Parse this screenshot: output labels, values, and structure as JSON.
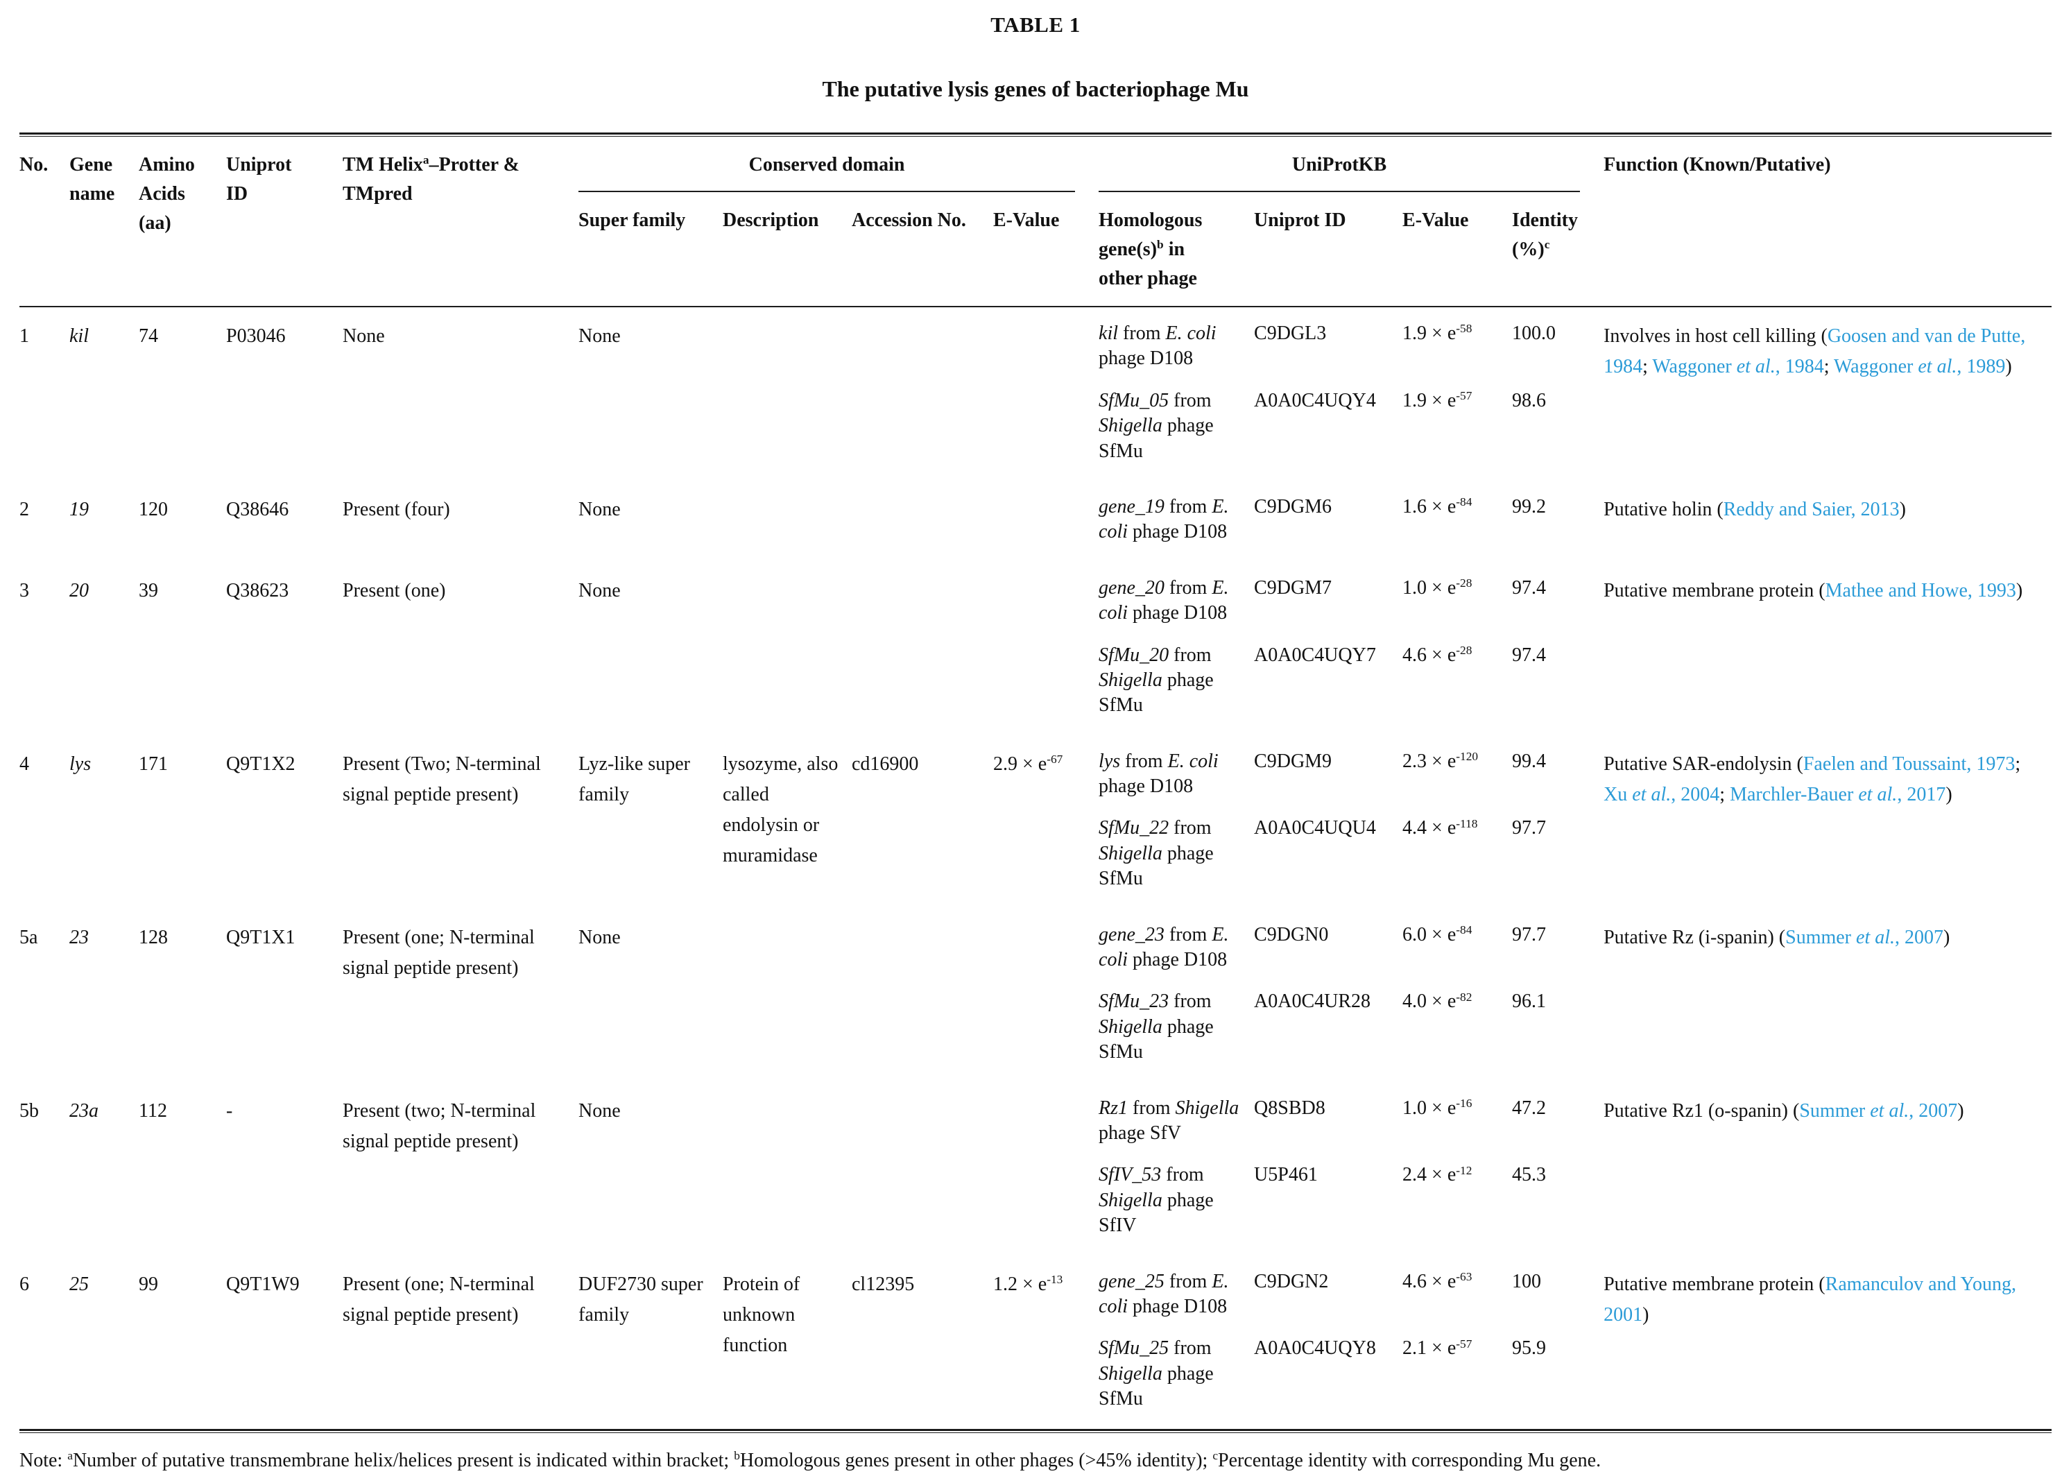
{
  "title": "TABLE 1",
  "subtitle": "The putative lysis genes of bacteriophage Mu",
  "accent_color": "#2b9bd7",
  "header": {
    "no": "No.",
    "gene_name": "Gene name",
    "amino_acids": "Amino Acids (aa)",
    "uniprot_id": "Uniprot ID",
    "tm_helix": [
      {
        "t": "TM Helix"
      },
      {
        "t": "a",
        "s": "sup"
      },
      {
        "t": "–Protter & TMpred"
      }
    ],
    "conserved_domain_group": "Conserved domain",
    "uniprotkb_group": "UniProtKB",
    "function": "Function (Known/Putative)",
    "sub": {
      "super_family": "Super family",
      "description": "Description",
      "accession_no": "Accession No.",
      "e_value": "E-Value",
      "homologous": [
        {
          "t": "Homologous gene(s)"
        },
        {
          "t": "b",
          "s": "sup"
        },
        {
          "t": " in other phage"
        }
      ],
      "uniprot_id": "Uniprot ID",
      "e_value2": "E-Value",
      "identity": [
        {
          "t": "Identity (%)"
        },
        {
          "t": "c",
          "s": "sup"
        }
      ]
    }
  },
  "rows": [
    {
      "no": "1",
      "gene": [
        {
          "t": "kil",
          "s": "i"
        }
      ],
      "aa": "74",
      "uniprot": "P03046",
      "tm": "None",
      "sf": "None",
      "desc": "",
      "acc": "",
      "ev": "",
      "homologs": [
        {
          "gene": [
            {
              "t": "kil",
              "s": "i"
            },
            {
              "t": " from "
            },
            {
              "t": "E. coli",
              "s": "i"
            },
            {
              "t": " phage D108"
            }
          ],
          "uniprot": "C9DGL3",
          "evalue": [
            {
              "t": "1.9 × e"
            },
            {
              "t": "-58",
              "s": "sup"
            }
          ],
          "identity": "100.0"
        },
        {
          "gene": [
            {
              "t": "SfMu_05",
              "s": "i"
            },
            {
              "t": " from "
            },
            {
              "t": "Shigella",
              "s": "i"
            },
            {
              "t": " phage SfMu"
            }
          ],
          "uniprot": "A0A0C4UQY4",
          "evalue": [
            {
              "t": "1.9 × e"
            },
            {
              "t": "-57",
              "s": "sup"
            }
          ],
          "identity": "98.6"
        }
      ],
      "function": [
        {
          "t": "Involves in host cell killing ("
        },
        {
          "t": "Goosen and van de Putte, 1984",
          "s": "link"
        },
        {
          "t": "; "
        },
        {
          "t": "Waggoner ",
          "s": "link"
        },
        {
          "t": "et al.",
          "s": "ilink"
        },
        {
          "t": ", 1984",
          "s": "link"
        },
        {
          "t": "; "
        },
        {
          "t": "Waggoner ",
          "s": "link"
        },
        {
          "t": "et al.",
          "s": "ilink"
        },
        {
          "t": ", 1989",
          "s": "link"
        },
        {
          "t": ")"
        }
      ]
    },
    {
      "no": "2",
      "gene": [
        {
          "t": "19",
          "s": "i"
        }
      ],
      "aa": "120",
      "uniprot": "Q38646",
      "tm": "Present (four)",
      "sf": "None",
      "desc": "",
      "acc": "",
      "ev": "",
      "homologs": [
        {
          "gene": [
            {
              "t": "gene_19",
              "s": "i"
            },
            {
              "t": " from "
            },
            {
              "t": "E. coli",
              "s": "i"
            },
            {
              "t": " phage D108"
            }
          ],
          "uniprot": "C9DGM6",
          "evalue": [
            {
              "t": "1.6 × e"
            },
            {
              "t": "-84",
              "s": "sup"
            }
          ],
          "identity": "99.2"
        }
      ],
      "function": [
        {
          "t": "Putative holin ("
        },
        {
          "t": "Reddy and Saier, 2013",
          "s": "link"
        },
        {
          "t": ")"
        }
      ]
    },
    {
      "no": "3",
      "gene": [
        {
          "t": "20",
          "s": "i"
        }
      ],
      "aa": "39",
      "uniprot": "Q38623",
      "tm": "Present (one)",
      "sf": "None",
      "desc": "",
      "acc": "",
      "ev": "",
      "homologs": [
        {
          "gene": [
            {
              "t": "gene_20",
              "s": "i"
            },
            {
              "t": " from "
            },
            {
              "t": "E. coli",
              "s": "i"
            },
            {
              "t": " phage D108"
            }
          ],
          "uniprot": "C9DGM7",
          "evalue": [
            {
              "t": "1.0 × e"
            },
            {
              "t": "-28",
              "s": "sup"
            }
          ],
          "identity": "97.4"
        },
        {
          "gene": [
            {
              "t": "SfMu_20",
              "s": "i"
            },
            {
              "t": " from "
            },
            {
              "t": "Shigella",
              "s": "i"
            },
            {
              "t": " phage SfMu"
            }
          ],
          "uniprot": "A0A0C4UQY7",
          "evalue": [
            {
              "t": "4.6 × e"
            },
            {
              "t": "-28",
              "s": "sup"
            }
          ],
          "identity": "97.4"
        }
      ],
      "function": [
        {
          "t": "Putative membrane protein ("
        },
        {
          "t": "Mathee and Howe, 1993",
          "s": "link"
        },
        {
          "t": ")"
        }
      ]
    },
    {
      "no": "4",
      "gene": [
        {
          "t": "lys",
          "s": "i"
        }
      ],
      "aa": "171",
      "uniprot": "Q9T1X2",
      "tm": "Present (Two; N-terminal signal peptide present)",
      "sf": "Lyz-like super family",
      "desc": "lysozyme, also called endolysin or muramidase",
      "acc": "cd16900",
      "ev": [
        {
          "t": "2.9 × e"
        },
        {
          "t": "-67",
          "s": "sup"
        }
      ],
      "homologs": [
        {
          "gene": [
            {
              "t": "lys",
              "s": "i"
            },
            {
              "t": " from "
            },
            {
              "t": "E. coli",
              "s": "i"
            },
            {
              "t": " phage D108"
            }
          ],
          "uniprot": "C9DGM9",
          "evalue": [
            {
              "t": "2.3 × e"
            },
            {
              "t": "-120",
              "s": "sup"
            }
          ],
          "identity": "99.4"
        },
        {
          "gene": [
            {
              "t": "SfMu_22",
              "s": "i"
            },
            {
              "t": " from "
            },
            {
              "t": "Shigella",
              "s": "i"
            },
            {
              "t": " phage SfMu"
            }
          ],
          "uniprot": "A0A0C4UQU4",
          "evalue": [
            {
              "t": "4.4 × e"
            },
            {
              "t": "-118",
              "s": "sup"
            }
          ],
          "identity": "97.7"
        }
      ],
      "function": [
        {
          "t": "Putative SAR-endolysin ("
        },
        {
          "t": "Faelen and Toussaint, 1973",
          "s": "link"
        },
        {
          "t": "; "
        },
        {
          "t": "Xu ",
          "s": "link"
        },
        {
          "t": "et al.",
          "s": "ilink"
        },
        {
          "t": ", 2004",
          "s": "link"
        },
        {
          "t": "; "
        },
        {
          "t": "Marchler-Bauer ",
          "s": "link"
        },
        {
          "t": "et al.",
          "s": "ilink"
        },
        {
          "t": ", 2017",
          "s": "link"
        },
        {
          "t": ")"
        }
      ]
    },
    {
      "no": "5a",
      "gene": [
        {
          "t": "23",
          "s": "i"
        }
      ],
      "aa": "128",
      "uniprot": "Q9T1X1",
      "tm": "Present (one; N-terminal signal peptide present)",
      "sf": "None",
      "desc": "",
      "acc": "",
      "ev": "",
      "homologs": [
        {
          "gene": [
            {
              "t": "gene_23",
              "s": "i"
            },
            {
              "t": " from "
            },
            {
              "t": "E. coli",
              "s": "i"
            },
            {
              "t": " phage D108"
            }
          ],
          "uniprot": "C9DGN0",
          "evalue": [
            {
              "t": "6.0 × e"
            },
            {
              "t": "-84",
              "s": "sup"
            }
          ],
          "identity": "97.7"
        },
        {
          "gene": [
            {
              "t": "SfMu_23",
              "s": "i"
            },
            {
              "t": " from "
            },
            {
              "t": "Shigella",
              "s": "i"
            },
            {
              "t": " phage SfMu"
            }
          ],
          "uniprot": "A0A0C4UR28",
          "evalue": [
            {
              "t": "4.0 × e"
            },
            {
              "t": "-82",
              "s": "sup"
            }
          ],
          "identity": "96.1"
        }
      ],
      "function": [
        {
          "t": "Putative Rz (i-spanin) ("
        },
        {
          "t": "Summer ",
          "s": "link"
        },
        {
          "t": "et al.",
          "s": "ilink"
        },
        {
          "t": ", 2007",
          "s": "link"
        },
        {
          "t": ")"
        }
      ]
    },
    {
      "no": "5b",
      "gene": [
        {
          "t": "23a",
          "s": "i"
        }
      ],
      "aa": "112",
      "uniprot": "-",
      "tm": "Present (two; N-terminal signal peptide present)",
      "sf": "None",
      "desc": "",
      "acc": "",
      "ev": "",
      "homologs": [
        {
          "gene": [
            {
              "t": "Rz1",
              "s": "i"
            },
            {
              "t": " from "
            },
            {
              "t": "Shigella",
              "s": "i"
            },
            {
              "t": " phage SfV"
            }
          ],
          "uniprot": "Q8SBD8",
          "evalue": [
            {
              "t": "1.0 × e"
            },
            {
              "t": "-16",
              "s": "sup"
            }
          ],
          "identity": "47.2"
        },
        {
          "gene": [
            {
              "t": "SfIV_53",
              "s": "i"
            },
            {
              "t": " from "
            },
            {
              "t": "Shigella",
              "s": "i"
            },
            {
              "t": " phage SfIV"
            }
          ],
          "uniprot": "U5P461",
          "evalue": [
            {
              "t": "2.4 × e"
            },
            {
              "t": "-12",
              "s": "sup"
            }
          ],
          "identity": "45.3"
        }
      ],
      "function": [
        {
          "t": "Putative Rz1 (o-spanin) ("
        },
        {
          "t": "Summer ",
          "s": "link"
        },
        {
          "t": "et al.",
          "s": "ilink"
        },
        {
          "t": ", 2007",
          "s": "link"
        },
        {
          "t": ")"
        }
      ]
    },
    {
      "no": "6",
      "gene": [
        {
          "t": "25",
          "s": "i"
        }
      ],
      "aa": "99",
      "uniprot": "Q9T1W9",
      "tm": "Present (one; N-terminal signal peptide present)",
      "sf": "DUF2730 super family",
      "desc": "Protein of unknown function",
      "acc": "cl12395",
      "ev": [
        {
          "t": "1.2 × e"
        },
        {
          "t": "-13",
          "s": "sup"
        }
      ],
      "homologs": [
        {
          "gene": [
            {
              "t": "gene_25",
              "s": "i"
            },
            {
              "t": " from "
            },
            {
              "t": "E. coli",
              "s": "i"
            },
            {
              "t": " phage D108"
            }
          ],
          "uniprot": "C9DGN2",
          "evalue": [
            {
              "t": "4.6 × e"
            },
            {
              "t": "-63",
              "s": "sup"
            }
          ],
          "identity": "100"
        },
        {
          "gene": [
            {
              "t": "SfMu_25",
              "s": "i"
            },
            {
              "t": " from "
            },
            {
              "t": "Shigella",
              "s": "i"
            },
            {
              "t": " phage SfMu"
            }
          ],
          "uniprot": "A0A0C4UQY8",
          "evalue": [
            {
              "t": "2.1 × e"
            },
            {
              "t": "-57",
              "s": "sup"
            }
          ],
          "identity": "95.9"
        }
      ],
      "function": [
        {
          "t": "Putative membrane protein ("
        },
        {
          "t": "Ramanculov and Young, 2001",
          "s": "link"
        },
        {
          "t": ")"
        }
      ]
    }
  ],
  "footnote": [
    {
      "t": "Note: "
    },
    {
      "t": "a",
      "s": "sup"
    },
    {
      "t": "Number of putative transmembrane helix/helices present is indicated within bracket; "
    },
    {
      "t": "b",
      "s": "sup"
    },
    {
      "t": "Homologous genes present in other phages (>45% identity); "
    },
    {
      "t": "c",
      "s": "sup"
    },
    {
      "t": "Percentage identity with corresponding Mu gene."
    }
  ]
}
